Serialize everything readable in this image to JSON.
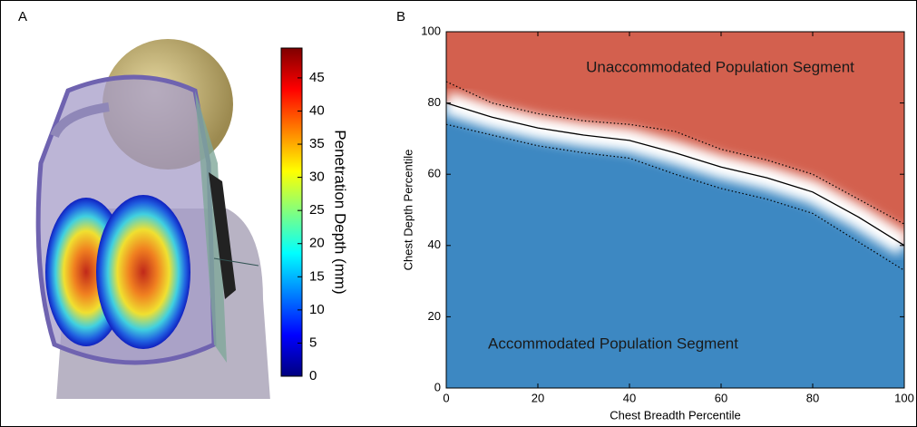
{
  "chart_data": [
    {
      "type": "colorbar",
      "label": "A",
      "title": "Penetration Depth (mm)",
      "ylim": [
        0,
        49.5
      ],
      "yticks": [
        0,
        5,
        10,
        15,
        20,
        25,
        30,
        35,
        40,
        45
      ],
      "colormap": [
        "#00007f",
        "#0000ff",
        "#0080ff",
        "#00ffff",
        "#80ff80",
        "#ffff00",
        "#ff8000",
        "#ff0000",
        "#7f0000"
      ]
    },
    {
      "type": "line",
      "label": "B",
      "xlabel": "Chest Breadth Percentile",
      "ylabel": "Chest Depth Percentile",
      "xlim": [
        0,
        100
      ],
      "ylim": [
        0,
        100
      ],
      "xticks": [
        0,
        20,
        40,
        60,
        80,
        100
      ],
      "yticks": [
        0,
        20,
        40,
        60,
        80,
        100
      ],
      "annotations": [
        "Unaccommodated Population Segment",
        "Accommodated Population Segment"
      ],
      "above_color": "#d3604e",
      "below_color": "#3d88c2",
      "x": [
        0,
        10,
        20,
        30,
        40,
        50,
        60,
        70,
        80,
        90,
        100
      ],
      "series": [
        {
          "color": "#000000",
          "style": "solid",
          "values": [
            80,
            76,
            73,
            71,
            69.5,
            66,
            62,
            59,
            55,
            48,
            40
          ]
        },
        {
          "color": "#000000",
          "style": "dotted",
          "values": [
            86,
            80,
            77,
            75,
            74,
            72,
            67,
            64,
            60,
            53,
            46
          ]
        },
        {
          "color": "#000000",
          "style": "dotted",
          "values": [
            74,
            71,
            68,
            66,
            64.5,
            60,
            56,
            53,
            49,
            41,
            33
          ]
        }
      ]
    }
  ]
}
